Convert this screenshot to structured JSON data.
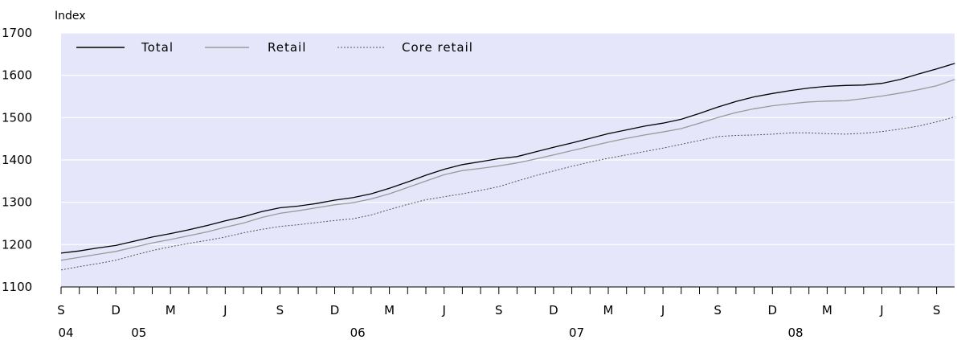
{
  "chart_data": {
    "type": "line",
    "unit_label": "Index",
    "ylim": [
      1100,
      1700
    ],
    "y_ticks": [
      "1100",
      "1200",
      "1300",
      "1400",
      "1500",
      "1600",
      "1700"
    ],
    "grid": "horizontal",
    "legend_position": "top-left",
    "x_month_labels": [
      "S",
      "D",
      "M",
      "J",
      "S",
      "D",
      "M",
      "J",
      "S",
      "D",
      "M",
      "J",
      "S",
      "D",
      "M",
      "J",
      "S"
    ],
    "x_year_labels": [
      "04",
      "05",
      "06",
      "07",
      "08"
    ],
    "x": [
      "2004-09",
      "2004-10",
      "2004-11",
      "2004-12",
      "2005-01",
      "2005-02",
      "2005-03",
      "2005-04",
      "2005-05",
      "2005-06",
      "2005-07",
      "2005-08",
      "2005-09",
      "2005-10",
      "2005-11",
      "2005-12",
      "2006-01",
      "2006-02",
      "2006-03",
      "2006-04",
      "2006-05",
      "2006-06",
      "2006-07",
      "2006-08",
      "2006-09",
      "2006-10",
      "2006-11",
      "2006-12",
      "2007-01",
      "2007-02",
      "2007-03",
      "2007-04",
      "2007-05",
      "2007-06",
      "2007-07",
      "2007-08",
      "2007-09",
      "2007-10",
      "2007-11",
      "2007-12",
      "2008-01",
      "2008-02",
      "2008-03",
      "2008-04",
      "2008-05",
      "2008-06",
      "2008-07",
      "2008-08",
      "2008-09",
      "2008-10"
    ],
    "series": [
      {
        "name": "Total",
        "color": "#000000",
        "style": "solid",
        "values": [
          1180,
          1185,
          1192,
          1198,
          1208,
          1218,
          1226,
          1235,
          1245,
          1256,
          1266,
          1278,
          1287,
          1291,
          1297,
          1305,
          1311,
          1320,
          1333,
          1348,
          1364,
          1378,
          1389,
          1396,
          1403,
          1408,
          1419,
          1430,
          1440,
          1451,
          1462,
          1471,
          1480,
          1487,
          1496,
          1510,
          1525,
          1538,
          1549,
          1557,
          1564,
          1570,
          1574,
          1576,
          1577,
          1581,
          1590,
          1603,
          1615,
          1628
        ]
      },
      {
        "name": "Retail",
        "color": "#999999",
        "style": "solid",
        "values": [
          1163,
          1170,
          1177,
          1184,
          1194,
          1204,
          1212,
          1221,
          1230,
          1241,
          1251,
          1264,
          1274,
          1280,
          1287,
          1294,
          1299,
          1308,
          1320,
          1335,
          1350,
          1365,
          1375,
          1380,
          1386,
          1393,
          1402,
          1412,
          1422,
          1432,
          1442,
          1451,
          1459,
          1466,
          1474,
          1487,
          1500,
          1512,
          1521,
          1528,
          1533,
          1537,
          1539,
          1540,
          1545,
          1551,
          1558,
          1566,
          1575,
          1590
        ]
      },
      {
        "name": "Core retail",
        "color": "#555555",
        "style": "dotted",
        "values": [
          1140,
          1148,
          1155,
          1163,
          1175,
          1186,
          1195,
          1203,
          1210,
          1218,
          1228,
          1236,
          1243,
          1247,
          1252,
          1257,
          1261,
          1270,
          1283,
          1295,
          1306,
          1313,
          1320,
          1328,
          1337,
          1350,
          1363,
          1374,
          1385,
          1395,
          1404,
          1412,
          1420,
          1428,
          1437,
          1446,
          1455,
          1458,
          1459,
          1461,
          1464,
          1464,
          1462,
          1461,
          1463,
          1467,
          1473,
          1480,
          1490,
          1502
        ]
      }
    ]
  }
}
